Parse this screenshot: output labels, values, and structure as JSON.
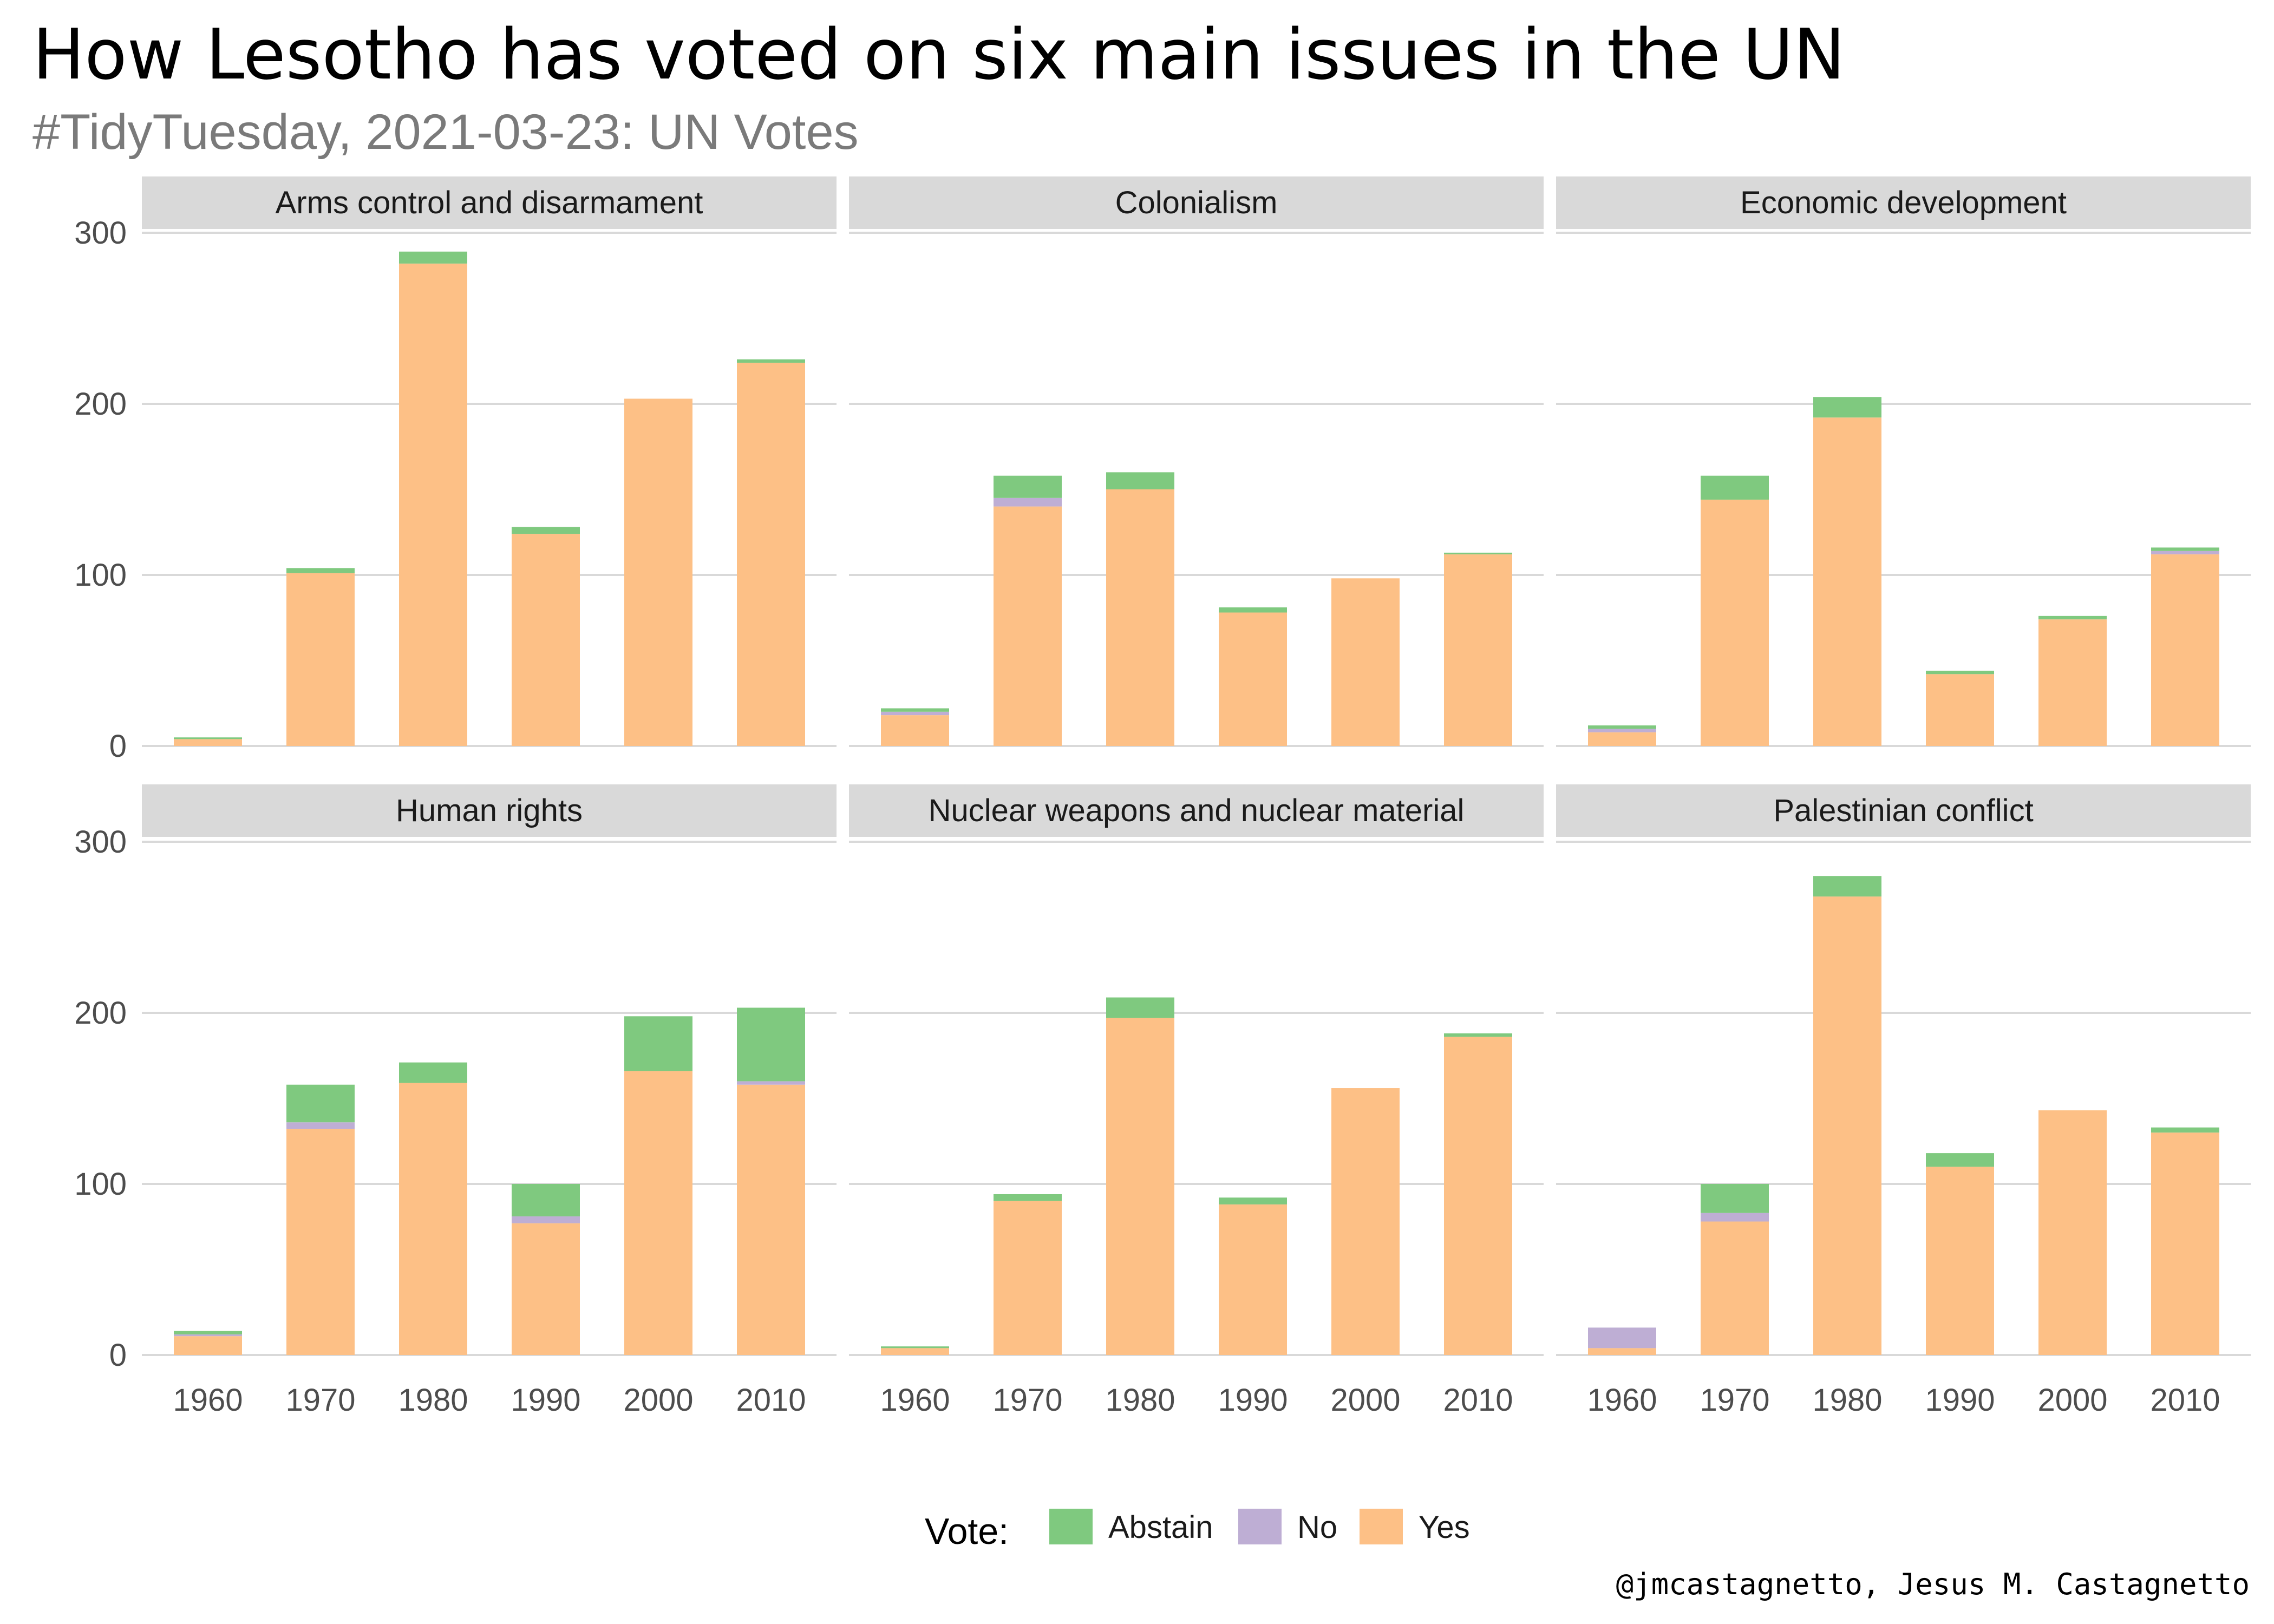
{
  "title": "How Lesotho has voted on six main issues in the UN",
  "subtitle": "#TidyTuesday, 2021-03-23: UN Votes",
  "caption": "@jmcastagnetto, Jesus M. Castagnetto",
  "colors": {
    "Abstain": "#7fc97f",
    "No": "#beaed4",
    "Yes": "#fdc086",
    "strip": "#d9d9d9",
    "grid": "#d9d9d9"
  },
  "chart_data": {
    "type": "bar",
    "stacked": true,
    "layout": "facet grid 2 rows x 3 columns, shared axes",
    "categories": [
      "1960",
      "1970",
      "1980",
      "1990",
      "2000",
      "2010"
    ],
    "ylim": [
      0,
      300
    ],
    "yticks": [
      0,
      100,
      200,
      300
    ],
    "grid": true,
    "legend": {
      "title": "Vote:",
      "position": "bottom",
      "entries": [
        "Abstain",
        "No",
        "Yes"
      ]
    },
    "stack_order_bottom_to_top": [
      "Yes",
      "No",
      "Abstain"
    ],
    "panels": [
      {
        "title": "Arms control and disarmament",
        "series": [
          {
            "name": "Yes",
            "values": [
              4,
              101,
              282,
              124,
              203,
              224
            ]
          },
          {
            "name": "No",
            "values": [
              0,
              0,
              0,
              0,
              0,
              0
            ]
          },
          {
            "name": "Abstain",
            "values": [
              1,
              3,
              7,
              4,
              0,
              2
            ]
          }
        ]
      },
      {
        "title": "Colonialism",
        "series": [
          {
            "name": "Yes",
            "values": [
              18,
              140,
              150,
              78,
              98,
              112
            ]
          },
          {
            "name": "No",
            "values": [
              2,
              5,
              0,
              0,
              0,
              0
            ]
          },
          {
            "name": "Abstain",
            "values": [
              2,
              13,
              10,
              3,
              0,
              1
            ]
          }
        ]
      },
      {
        "title": "Economic development",
        "series": [
          {
            "name": "Yes",
            "values": [
              8,
              144,
              192,
              42,
              74,
              112
            ]
          },
          {
            "name": "No",
            "values": [
              2,
              0,
              0,
              0,
              0,
              2
            ]
          },
          {
            "name": "Abstain",
            "values": [
              2,
              14,
              12,
              2,
              2,
              2
            ]
          }
        ]
      },
      {
        "title": "Human rights",
        "series": [
          {
            "name": "Yes",
            "values": [
              11,
              132,
              159,
              77,
              166,
              158
            ]
          },
          {
            "name": "No",
            "values": [
              1,
              4,
              0,
              4,
              0,
              2
            ]
          },
          {
            "name": "Abstain",
            "values": [
              2,
              22,
              12,
              19,
              32,
              43
            ]
          }
        ]
      },
      {
        "title": "Nuclear weapons and nuclear material",
        "series": [
          {
            "name": "Yes",
            "values": [
              4,
              90,
              197,
              88,
              156,
              186
            ]
          },
          {
            "name": "No",
            "values": [
              0,
              0,
              0,
              0,
              0,
              0
            ]
          },
          {
            "name": "Abstain",
            "values": [
              1,
              4,
              12,
              4,
              0,
              2
            ]
          }
        ]
      },
      {
        "title": "Palestinian conflict",
        "series": [
          {
            "name": "Yes",
            "values": [
              4,
              78,
              268,
              110,
              143,
              130
            ]
          },
          {
            "name": "No",
            "values": [
              12,
              5,
              0,
              0,
              0,
              0
            ]
          },
          {
            "name": "Abstain",
            "values": [
              0,
              17,
              12,
              8,
              0,
              3
            ]
          }
        ]
      }
    ]
  }
}
